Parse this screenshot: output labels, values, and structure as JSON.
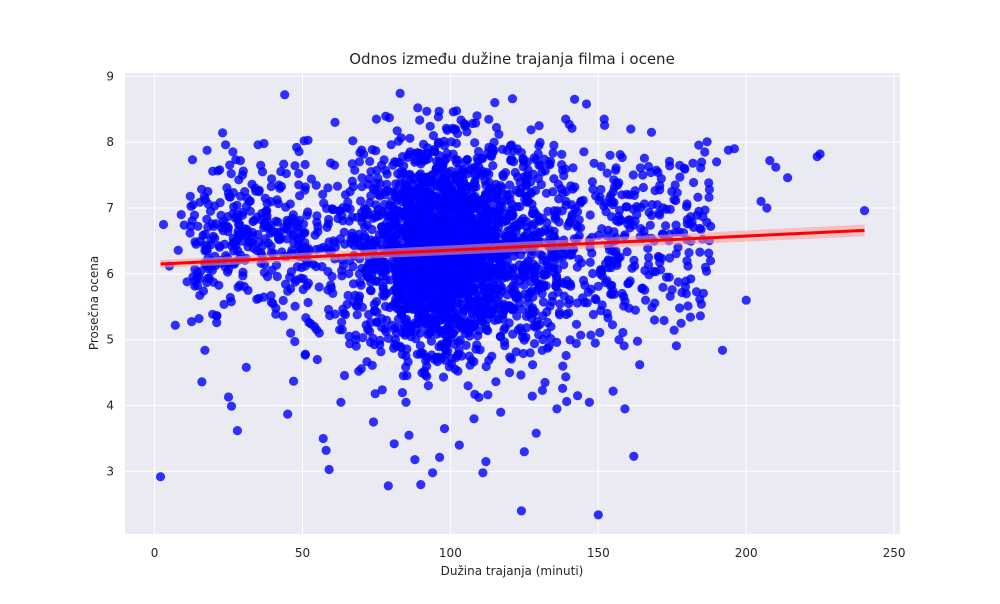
{
  "colors": {
    "plot_background": "#eaeaf2",
    "grid": "#ffffff",
    "points": "#0000ff",
    "regression_line": "#ff0000",
    "confidence_band": "#ff9999"
  },
  "chart_data": {
    "type": "scatter",
    "title": "Odnos između dužine trajanja filma i ocene",
    "xlabel": "Dužina trajanja (minuti)",
    "ylabel": "Prosečna ocena",
    "xlim": [
      -10,
      252
    ],
    "ylim": [
      2.05,
      9.05
    ],
    "xticks": [
      0,
      50,
      100,
      150,
      200,
      250
    ],
    "yticks": [
      3,
      4,
      5,
      6,
      7,
      8,
      9
    ],
    "grid": true,
    "legend": "none",
    "regression": {
      "x": [
        2,
        240
      ],
      "y": [
        6.15,
        6.66
      ],
      "ci_halfwidth": [
        0.06,
        0.09
      ]
    },
    "point_count_note": "thousands of points; dense cluster around x 85-130, y 4.5-7.8",
    "series": [
      {
        "points": [
          [
            2,
            2.92
          ],
          [
            3,
            6.75
          ],
          [
            5,
            6.12
          ],
          [
            7,
            5.22
          ],
          [
            8,
            6.36
          ],
          [
            9,
            6.9
          ],
          [
            10,
            6.74
          ],
          [
            11,
            5.88
          ],
          [
            12,
            6.62
          ],
          [
            13,
            7.05
          ],
          [
            14,
            6.45
          ],
          [
            15,
            5.32
          ],
          [
            16,
            4.36
          ],
          [
            17,
            4.84
          ],
          [
            18,
            7.25
          ],
          [
            19,
            6.2
          ],
          [
            20,
            6.72
          ],
          [
            21,
            5.26
          ],
          [
            22,
            7.58
          ],
          [
            23,
            8.14
          ],
          [
            24,
            7.96
          ],
          [
            25,
            4.13
          ],
          [
            26,
            3.99
          ],
          [
            27,
            6.48
          ],
          [
            28,
            3.62
          ],
          [
            29,
            7.72
          ],
          [
            30,
            7.56
          ],
          [
            31,
            4.58
          ],
          [
            32,
            7.1
          ],
          [
            33,
            6.58
          ],
          [
            35,
            7.96
          ],
          [
            36,
            6.16
          ],
          [
            37,
            7.98
          ],
          [
            38,
            6.88
          ],
          [
            40,
            5.55
          ],
          [
            41,
            6.8
          ],
          [
            42,
            7.35
          ],
          [
            44,
            8.72
          ],
          [
            45,
            3.87
          ],
          [
            46,
            5.1
          ],
          [
            47,
            4.37
          ],
          [
            48,
            7.92
          ],
          [
            49,
            6.26
          ],
          [
            50,
            6.62
          ],
          [
            51,
            4.78
          ],
          [
            52,
            5.86
          ],
          [
            53,
            7.44
          ],
          [
            54,
            5.2
          ],
          [
            55,
            4.7
          ],
          [
            56,
            6.38
          ],
          [
            57,
            3.5
          ],
          [
            58,
            3.32
          ],
          [
            59,
            3.03
          ],
          [
            60,
            5.96
          ],
          [
            61,
            8.3
          ],
          [
            62,
            6.84
          ],
          [
            63,
            4.05
          ],
          [
            64,
            5.4
          ],
          [
            65,
            7.0
          ],
          [
            66,
            6.2
          ],
          [
            67,
            8.02
          ],
          [
            68,
            5.0
          ],
          [
            69,
            4.52
          ],
          [
            70,
            7.88
          ],
          [
            71,
            6.55
          ],
          [
            72,
            6.95
          ],
          [
            73,
            5.75
          ],
          [
            74,
            3.75
          ],
          [
            75,
            8.35
          ],
          [
            76,
            6.6
          ],
          [
            77,
            4.24
          ],
          [
            78,
            7.2
          ],
          [
            79,
            2.78
          ],
          [
            80,
            6.1
          ],
          [
            81,
            3.42
          ],
          [
            82,
            5.55
          ],
          [
            83,
            8.74
          ],
          [
            84,
            6.9
          ],
          [
            85,
            4.05
          ],
          [
            86,
            3.55
          ],
          [
            87,
            6.4
          ],
          [
            88,
            3.18
          ],
          [
            89,
            8.52
          ],
          [
            90,
            2.8
          ],
          [
            91,
            7.45
          ],
          [
            92,
            4.6
          ],
          [
            93,
            5.8
          ],
          [
            94,
            2.98
          ],
          [
            95,
            6.2
          ],
          [
            96,
            8.0
          ],
          [
            97,
            4.9
          ],
          [
            98,
            3.65
          ],
          [
            99,
            7.3
          ],
          [
            100,
            5.1
          ],
          [
            101,
            8.46
          ],
          [
            102,
            6.55
          ],
          [
            103,
            3.4
          ],
          [
            104,
            5.95
          ],
          [
            105,
            7.7
          ],
          [
            106,
            4.3
          ],
          [
            107,
            6.1
          ],
          [
            108,
            3.8
          ],
          [
            109,
            8.4
          ],
          [
            110,
            5.4
          ],
          [
            111,
            2.98
          ],
          [
            112,
            3.15
          ],
          [
            113,
            6.8
          ],
          [
            114,
            4.75
          ],
          [
            115,
            8.6
          ],
          [
            116,
            5.6
          ],
          [
            117,
            3.9
          ],
          [
            118,
            7.2
          ],
          [
            119,
            6.0
          ],
          [
            120,
            4.5
          ],
          [
            121,
            8.66
          ],
          [
            122,
            6.35
          ],
          [
            123,
            5.15
          ],
          [
            124,
            2.4
          ],
          [
            125,
            3.3
          ],
          [
            126,
            7.5
          ],
          [
            127,
            4.8
          ],
          [
            128,
            6.15
          ],
          [
            129,
            3.58
          ],
          [
            130,
            8.25
          ],
          [
            131,
            5.7
          ],
          [
            132,
            4.35
          ],
          [
            133,
            6.95
          ],
          [
            134,
            5.2
          ],
          [
            135,
            7.95
          ],
          [
            136,
            3.95
          ],
          [
            137,
            6.4
          ],
          [
            138,
            4.6
          ],
          [
            139,
            8.35
          ],
          [
            140,
            5.55
          ],
          [
            141,
            7.05
          ],
          [
            142,
            8.65
          ],
          [
            143,
            4.15
          ],
          [
            144,
            6.7
          ],
          [
            145,
            5.9
          ],
          [
            146,
            8.58
          ],
          [
            147,
            4.05
          ],
          [
            148,
            7.4
          ],
          [
            149,
            4.95
          ],
          [
            150,
            2.34
          ],
          [
            151,
            6.05
          ],
          [
            152,
            8.35
          ],
          [
            153,
            5.4
          ],
          [
            154,
            7.8
          ],
          [
            155,
            4.22
          ],
          [
            156,
            6.55
          ],
          [
            157,
            5.0
          ],
          [
            158,
            7.2
          ],
          [
            159,
            3.95
          ],
          [
            160,
            5.85
          ],
          [
            161,
            8.2
          ],
          [
            162,
            3.23
          ],
          [
            163,
            6.9
          ],
          [
            164,
            4.62
          ],
          [
            165,
            7.5
          ],
          [
            166,
            5.6
          ],
          [
            167,
            6.25
          ],
          [
            168,
            8.15
          ],
          [
            169,
            5.3
          ],
          [
            170,
            7.05
          ],
          [
            172,
            6.6
          ],
          [
            174,
            5.95
          ],
          [
            176,
            7.35
          ],
          [
            178,
            5.25
          ],
          [
            180,
            6.2
          ],
          [
            182,
            7.68
          ],
          [
            184,
            6.95
          ],
          [
            186,
            7.85
          ],
          [
            188,
            6.72
          ],
          [
            190,
            7.7
          ],
          [
            192,
            4.84
          ],
          [
            194,
            7.88
          ],
          [
            196,
            7.9
          ],
          [
            200,
            5.6
          ],
          [
            205,
            7.1
          ],
          [
            207,
            7.0
          ],
          [
            208,
            7.72
          ],
          [
            210,
            7.62
          ],
          [
            214,
            7.46
          ],
          [
            224,
            7.78
          ],
          [
            225,
            7.82
          ],
          [
            240,
            6.96
          ]
        ]
      }
    ]
  }
}
